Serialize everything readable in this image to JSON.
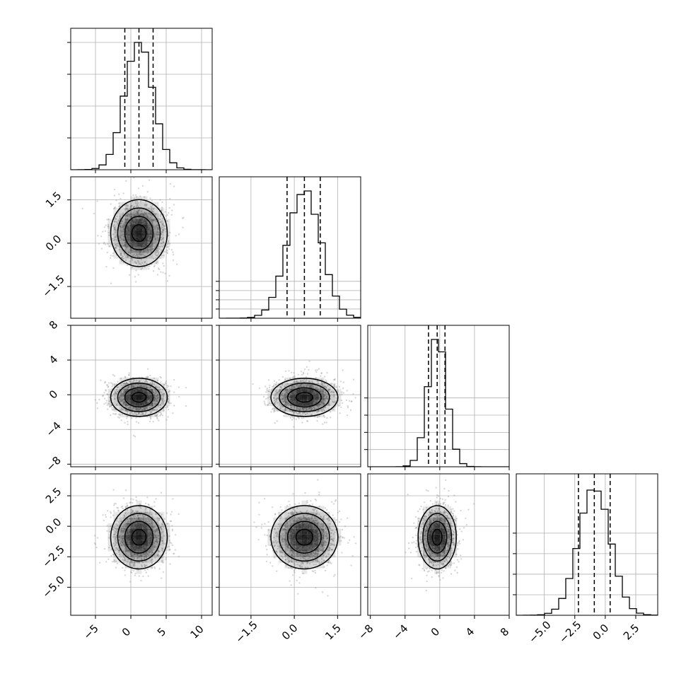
{
  "chart_data": {
    "type": "corner",
    "title": "",
    "params": [
      {
        "range": [
          -8.5,
          11.5
        ],
        "ticks": [
          -5,
          0,
          5,
          10
        ],
        "tick_labels": [
          "−5",
          "0",
          "5",
          "10"
        ],
        "median": 1.15,
        "q16": -0.85,
        "q84": 3.15,
        "sigma": 2.0,
        "hist_max": 0.2
      },
      {
        "range": [
          -2.6,
          2.3
        ],
        "ticks": [
          -1.5,
          0.0,
          1.5
        ],
        "tick_labels": [
          "−1.5",
          "0.0",
          "1.5"
        ],
        "median": 0.35,
        "q16": -0.25,
        "q84": 0.9,
        "sigma": 0.58,
        "hist_max": 0.69
      },
      {
        "range": [
          -8.3,
          8.0
        ],
        "ticks": [
          -8,
          -4,
          0,
          4,
          8
        ],
        "tick_labels": [
          "−8",
          "−4",
          "0",
          "4",
          "8"
        ],
        "median": -0.3,
        "q16": -1.3,
        "q84": 0.6,
        "sigma": 1.1,
        "hist_max": 0.37
      },
      {
        "range": [
          -7.3,
          4.3
        ],
        "ticks": [
          -5.0,
          -2.5,
          0.0,
          2.5
        ],
        "tick_labels": [
          "−5.0",
          "−2.5",
          "0.0",
          "2.5"
        ],
        "median": -0.9,
        "q16": -2.2,
        "q84": 0.4,
        "sigma": 1.3,
        "hist_max": 0.31
      }
    ],
    "hist_ticks": [
      0.05,
      0.1,
      0.15,
      0.2
    ],
    "x_tick_rotation": "45deg",
    "y_tick_rotation": "45deg",
    "grid": true,
    "legend": "none",
    "quantiles": [
      0.16,
      0.5,
      0.84
    ],
    "contour_levels": [
      "0.5 sigma",
      "1 sigma",
      "1.5 sigma",
      "2 sigma"
    ],
    "colors": {
      "line": "#000000",
      "grid": "#b0b0b0",
      "points": "#8c8c8c",
      "density": "#000000"
    }
  }
}
